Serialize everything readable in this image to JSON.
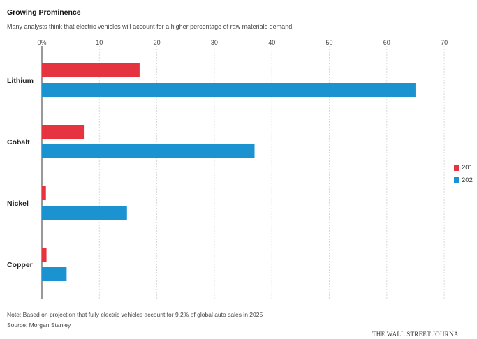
{
  "header": {
    "title": "Growing Prominence",
    "subtitle": "Many analysts think that electric vehicles will account for a higher percentage of raw materials demand."
  },
  "footer": {
    "note": "Note: Based on projection that fully electric vehicles account for 9.2% of global auto sales in 2025",
    "source": "Source: Morgan Stanley",
    "brand": "THE WALL STREET JOURNA"
  },
  "legend": [
    {
      "label": "201",
      "color": "#e5343f"
    },
    {
      "label": "202",
      "color": "#1a93d0"
    }
  ],
  "chart_data": {
    "type": "bar",
    "orientation": "horizontal",
    "categories": [
      "Lithium",
      "Cobalt",
      "Nickel",
      "Copper"
    ],
    "series": [
      {
        "name": "201",
        "color": "#e5343f",
        "values": [
          17,
          7.3,
          0.7,
          0.8
        ]
      },
      {
        "name": "202",
        "color": "#1a93d0",
        "values": [
          65,
          37,
          14.8,
          4.3
        ]
      }
    ],
    "xlim": [
      0,
      70
    ],
    "xticks": [
      {
        "value": 0,
        "label": "0%"
      },
      {
        "value": 10,
        "label": "10"
      },
      {
        "value": 20,
        "label": "20"
      },
      {
        "value": 30,
        "label": "30"
      },
      {
        "value": 40,
        "label": "40"
      },
      {
        "value": 50,
        "label": "50"
      },
      {
        "value": 60,
        "label": "60"
      },
      {
        "value": 70,
        "label": "70"
      }
    ],
    "grid": true,
    "legend_position": "right"
  }
}
